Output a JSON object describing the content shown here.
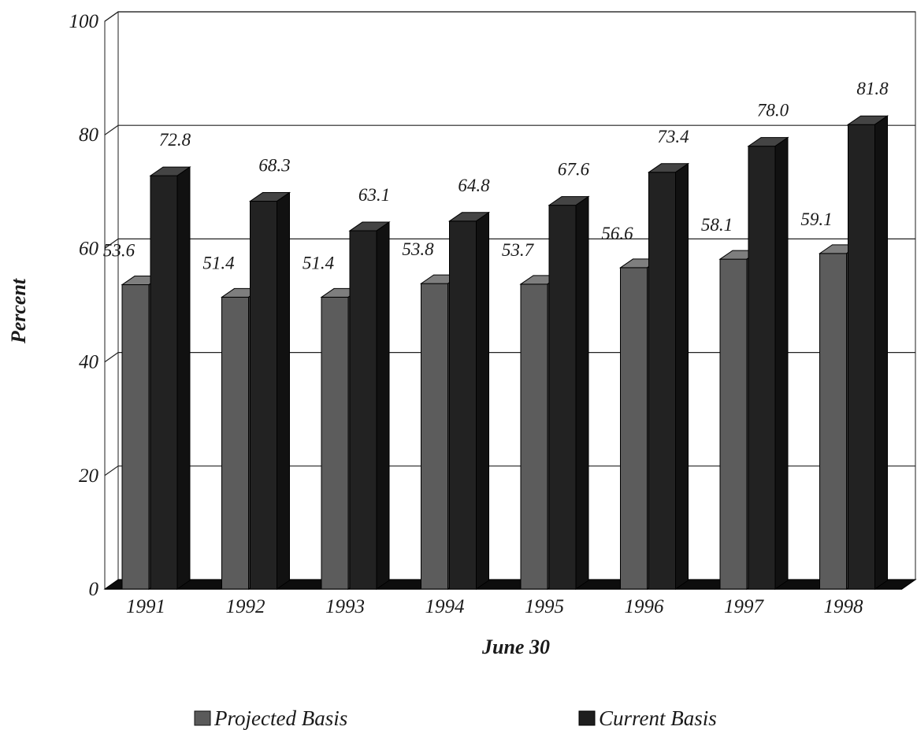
{
  "chart_data": {
    "type": "bar",
    "title": "",
    "xlabel": "June 30",
    "ylabel": "Percent",
    "ylim": [
      0,
      100
    ],
    "yticks": [
      "0",
      "20",
      "40",
      "60",
      "80",
      "100"
    ],
    "categories": [
      "1991",
      "1992",
      "1993",
      "1994",
      "1995",
      "1996",
      "1997",
      "1998"
    ],
    "series": [
      {
        "name": "Projected Basis",
        "values": [
          53.6,
          51.4,
          51.4,
          53.8,
          53.7,
          56.6,
          58.1,
          59.1
        ],
        "labels": [
          "53.6",
          "51.4",
          "51.4",
          "53.8",
          "53.7",
          "56.6",
          "58.1",
          "59.1"
        ],
        "color": "#5a5a5a"
      },
      {
        "name": "Current Basis",
        "values": [
          72.8,
          68.3,
          63.1,
          64.8,
          67.6,
          73.4,
          78.0,
          81.8
        ],
        "labels": [
          "72.8",
          "68.3",
          "63.1",
          "64.8",
          "67.6",
          "73.4",
          "78.0",
          "81.8"
        ],
        "color": "#222222"
      }
    ],
    "grid": true,
    "legend": "bottom",
    "style": "3d"
  }
}
